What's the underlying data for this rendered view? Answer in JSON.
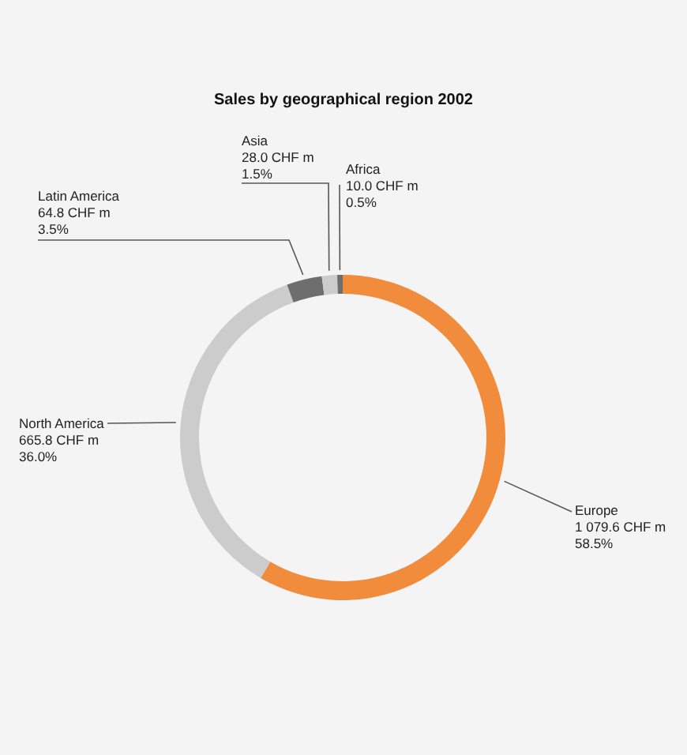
{
  "chart_data": {
    "type": "donut",
    "title": "Sales by geographical region 2002",
    "categories": [
      "Europe",
      "North America",
      "Latin America",
      "Asia",
      "Africa"
    ],
    "values": [
      1079.6,
      665.8,
      64.8,
      28.0,
      10.0
    ],
    "colors": [
      "#f08c3c",
      "#cccccc",
      "#6e6e6e",
      "#cccccc",
      "#6e6e6e"
    ],
    "value_labels": [
      "1 079.6 CHF m\n58.5%",
      "665.8 CHF m\n36.0%",
      "64.8 CHF m\n3.5%",
      "28.0 CHF m\n1.5%",
      "10.0 CHF m\n0.5%"
    ]
  }
}
